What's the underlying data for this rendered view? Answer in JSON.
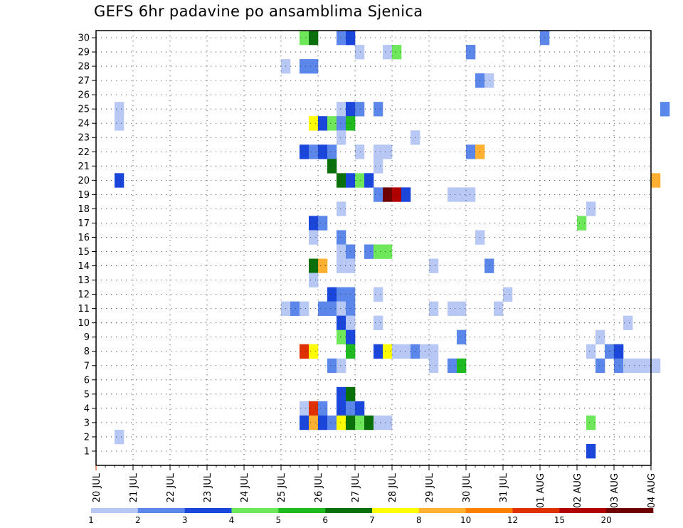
{
  "title": "GEFS 6hr padavine po ansamblima Sjenica",
  "chart_data": {
    "type": "heatmap",
    "title": "GEFS 6hr padavine po ansamblima Sjenica",
    "x_tick_labels": [
      "20 JUL",
      "21 JUL",
      "22 JUL",
      "23 JUL",
      "24 JUL",
      "25 JUL",
      "26 JUL",
      "27 JUL",
      "28 JUL",
      "29 JUL",
      "30 JUL",
      "31 JUL",
      "01 AUG",
      "02 AUG",
      "03 AUG",
      "04 AUG"
    ],
    "y_tick_labels": [
      "1",
      "2",
      "3",
      "4",
      "5",
      "6",
      "7",
      "8",
      "9",
      "10",
      "11",
      "12",
      "13",
      "14",
      "15",
      "16",
      "17",
      "18",
      "19",
      "20",
      "21",
      "22",
      "23",
      "24",
      "25",
      "26",
      "27",
      "28",
      "29",
      "30"
    ],
    "x_unit": "6-hour step from 20 JUL 00",
    "grid": true,
    "colorbar": {
      "position": "bottom",
      "labels": [
        "1",
        "2",
        "3",
        "4",
        "5",
        "6",
        "7",
        "8",
        "10",
        "12",
        "15",
        "20"
      ],
      "colors": [
        "#b8c8f5",
        "#5b87ea",
        "#1a46dc",
        "#6ee85a",
        "#1fba1f",
        "#0a700a",
        "#ffff00",
        "#ffb030",
        "#ff7f00",
        "#e03000",
        "#b00000",
        "#6e0000"
      ]
    },
    "cells": [
      {
        "m": 30,
        "t": 22,
        "c": 3
      },
      {
        "m": 30,
        "t": 23,
        "c": 5
      },
      {
        "m": 30,
        "t": 26,
        "c": 1
      },
      {
        "m": 30,
        "t": 27,
        "c": 2
      },
      {
        "m": 30,
        "t": 48,
        "c": 1
      },
      {
        "m": 29,
        "t": 28,
        "c": 0
      },
      {
        "m": 29,
        "t": 31,
        "c": 0
      },
      {
        "m": 29,
        "t": 32,
        "c": 3
      },
      {
        "m": 29,
        "t": 40,
        "c": 1
      },
      {
        "m": 28,
        "t": 20,
        "c": 0
      },
      {
        "m": 28,
        "t": 22,
        "c": 1
      },
      {
        "m": 28,
        "t": 23,
        "c": 1
      },
      {
        "m": 27,
        "t": 41,
        "c": 1
      },
      {
        "m": 27,
        "t": 42,
        "c": 0
      },
      {
        "m": 25,
        "t": 2,
        "c": 0
      },
      {
        "m": 25,
        "t": 26,
        "c": 0
      },
      {
        "m": 25,
        "t": 27,
        "c": 2
      },
      {
        "m": 25,
        "t": 28,
        "c": 1
      },
      {
        "m": 25,
        "t": 30,
        "c": 1
      },
      {
        "m": 25,
        "t": 61,
        "c": 1
      },
      {
        "m": 24,
        "t": 2,
        "c": 0
      },
      {
        "m": 24,
        "t": 23,
        "c": 6
      },
      {
        "m": 24,
        "t": 24,
        "c": 2
      },
      {
        "m": 24,
        "t": 25,
        "c": 3
      },
      {
        "m": 24,
        "t": 26,
        "c": 1
      },
      {
        "m": 24,
        "t": 27,
        "c": 4
      },
      {
        "m": 23,
        "t": 26,
        "c": 0
      },
      {
        "m": 23,
        "t": 34,
        "c": 0
      },
      {
        "m": 22,
        "t": 22,
        "c": 2
      },
      {
        "m": 22,
        "t": 23,
        "c": 1
      },
      {
        "m": 22,
        "t": 24,
        "c": 2
      },
      {
        "m": 22,
        "t": 25,
        "c": 1
      },
      {
        "m": 22,
        "t": 28,
        "c": 0
      },
      {
        "m": 22,
        "t": 30,
        "c": 0
      },
      {
        "m": 22,
        "t": 31,
        "c": 0
      },
      {
        "m": 22,
        "t": 40,
        "c": 1
      },
      {
        "m": 22,
        "t": 41,
        "c": 7
      },
      {
        "m": 21,
        "t": 25,
        "c": 5
      },
      {
        "m": 21,
        "t": 30,
        "c": 0
      },
      {
        "m": 20,
        "t": 2,
        "c": 2
      },
      {
        "m": 20,
        "t": 26,
        "c": 5
      },
      {
        "m": 20,
        "t": 27,
        "c": 2
      },
      {
        "m": 20,
        "t": 28,
        "c": 3
      },
      {
        "m": 20,
        "t": 29,
        "c": 2
      },
      {
        "m": 20,
        "t": 60,
        "c": 7
      },
      {
        "m": 19,
        "t": 30,
        "c": 1
      },
      {
        "m": 19,
        "t": 31,
        "c": 11
      },
      {
        "m": 19,
        "t": 32,
        "c": 10
      },
      {
        "m": 19,
        "t": 33,
        "c": 2
      },
      {
        "m": 19,
        "t": 38,
        "c": 0
      },
      {
        "m": 19,
        "t": 39,
        "c": 0
      },
      {
        "m": 19,
        "t": 40,
        "c": 0
      },
      {
        "m": 18,
        "t": 26,
        "c": 0
      },
      {
        "m": 18,
        "t": 53,
        "c": 0
      },
      {
        "m": 17,
        "t": 23,
        "c": 2
      },
      {
        "m": 17,
        "t": 24,
        "c": 1
      },
      {
        "m": 17,
        "t": 52,
        "c": 3
      },
      {
        "m": 16,
        "t": 23,
        "c": 0
      },
      {
        "m": 16,
        "t": 26,
        "c": 1
      },
      {
        "m": 16,
        "t": 41,
        "c": 0
      },
      {
        "m": 15,
        "t": 26,
        "c": 0
      },
      {
        "m": 15,
        "t": 27,
        "c": 1
      },
      {
        "m": 15,
        "t": 29,
        "c": 1
      },
      {
        "m": 15,
        "t": 30,
        "c": 3
      },
      {
        "m": 15,
        "t": 31,
        "c": 3
      },
      {
        "m": 14,
        "t": 23,
        "c": 5
      },
      {
        "m": 14,
        "t": 24,
        "c": 7
      },
      {
        "m": 14,
        "t": 26,
        "c": 0
      },
      {
        "m": 14,
        "t": 27,
        "c": 0
      },
      {
        "m": 14,
        "t": 36,
        "c": 0
      },
      {
        "m": 14,
        "t": 42,
        "c": 1
      },
      {
        "m": 13,
        "t": 23,
        "c": 0
      },
      {
        "m": 12,
        "t": 25,
        "c": 2
      },
      {
        "m": 12,
        "t": 26,
        "c": 1
      },
      {
        "m": 12,
        "t": 27,
        "c": 1
      },
      {
        "m": 12,
        "t": 30,
        "c": 0
      },
      {
        "m": 12,
        "t": 44,
        "c": 0
      },
      {
        "m": 11,
        "t": 20,
        "c": 0
      },
      {
        "m": 11,
        "t": 21,
        "c": 1
      },
      {
        "m": 11,
        "t": 22,
        "c": 0
      },
      {
        "m": 11,
        "t": 24,
        "c": 1
      },
      {
        "m": 11,
        "t": 25,
        "c": 1
      },
      {
        "m": 11,
        "t": 26,
        "c": 0
      },
      {
        "m": 11,
        "t": 27,
        "c": 1
      },
      {
        "m": 11,
        "t": 36,
        "c": 0
      },
      {
        "m": 11,
        "t": 38,
        "c": 0
      },
      {
        "m": 11,
        "t": 39,
        "c": 0
      },
      {
        "m": 11,
        "t": 43,
        "c": 0
      },
      {
        "m": 10,
        "t": 26,
        "c": 2
      },
      {
        "m": 10,
        "t": 27,
        "c": 0
      },
      {
        "m": 10,
        "t": 30,
        "c": 0
      },
      {
        "m": 10,
        "t": 57,
        "c": 0
      },
      {
        "m": 9,
        "t": 26,
        "c": 3
      },
      {
        "m": 9,
        "t": 27,
        "c": 2
      },
      {
        "m": 9,
        "t": 39,
        "c": 1
      },
      {
        "m": 9,
        "t": 54,
        "c": 0
      },
      {
        "m": 8,
        "t": 22,
        "c": 9
      },
      {
        "m": 8,
        "t": 23,
        "c": 6
      },
      {
        "m": 8,
        "t": 27,
        "c": 4
      },
      {
        "m": 8,
        "t": 30,
        "c": 2
      },
      {
        "m": 8,
        "t": 31,
        "c": 6
      },
      {
        "m": 8,
        "t": 32,
        "c": 0
      },
      {
        "m": 8,
        "t": 33,
        "c": 0
      },
      {
        "m": 8,
        "t": 34,
        "c": 1
      },
      {
        "m": 8,
        "t": 35,
        "c": 0
      },
      {
        "m": 8,
        "t": 36,
        "c": 0
      },
      {
        "m": 8,
        "t": 53,
        "c": 0
      },
      {
        "m": 8,
        "t": 55,
        "c": 1
      },
      {
        "m": 8,
        "t": 56,
        "c": 2
      },
      {
        "m": 7,
        "t": 25,
        "c": 1
      },
      {
        "m": 7,
        "t": 26,
        "c": 0
      },
      {
        "m": 7,
        "t": 36,
        "c": 0
      },
      {
        "m": 7,
        "t": 38,
        "c": 1
      },
      {
        "m": 7,
        "t": 39,
        "c": 4
      },
      {
        "m": 7,
        "t": 54,
        "c": 1
      },
      {
        "m": 7,
        "t": 56,
        "c": 1
      },
      {
        "m": 7,
        "t": 57,
        "c": 0
      },
      {
        "m": 7,
        "t": 58,
        "c": 0
      },
      {
        "m": 7,
        "t": 59,
        "c": 0
      },
      {
        "m": 7,
        "t": 60,
        "c": 0
      },
      {
        "m": 5,
        "t": 26,
        "c": 2
      },
      {
        "m": 5,
        "t": 27,
        "c": 5
      },
      {
        "m": 4,
        "t": 22,
        "c": 0
      },
      {
        "m": 4,
        "t": 23,
        "c": 9
      },
      {
        "m": 4,
        "t": 24,
        "c": 1
      },
      {
        "m": 4,
        "t": 26,
        "c": 2
      },
      {
        "m": 4,
        "t": 27,
        "c": 1
      },
      {
        "m": 4,
        "t": 28,
        "c": 2
      },
      {
        "m": 3,
        "t": 22,
        "c": 2
      },
      {
        "m": 3,
        "t": 23,
        "c": 7
      },
      {
        "m": 3,
        "t": 24,
        "c": 2
      },
      {
        "m": 3,
        "t": 25,
        "c": 1
      },
      {
        "m": 3,
        "t": 26,
        "c": 6
      },
      {
        "m": 3,
        "t": 27,
        "c": 5
      },
      {
        "m": 3,
        "t": 28,
        "c": 3
      },
      {
        "m": 3,
        "t": 29,
        "c": 5
      },
      {
        "m": 3,
        "t": 30,
        "c": 0
      },
      {
        "m": 3,
        "t": 31,
        "c": 0
      },
      {
        "m": 3,
        "t": 53,
        "c": 3
      },
      {
        "m": 2,
        "t": 2,
        "c": 0
      },
      {
        "m": 1,
        "t": 53,
        "c": 2
      }
    ]
  }
}
